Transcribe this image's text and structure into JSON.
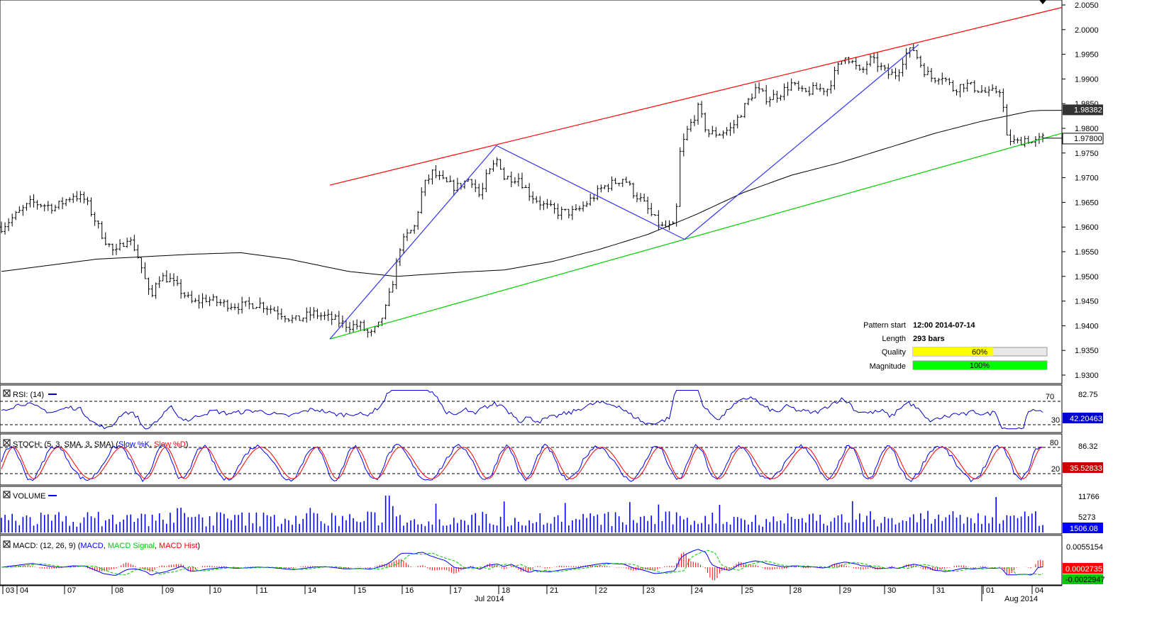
{
  "colors": {
    "channel_upper": "#ff0000",
    "channel_lower": "#00cc00",
    "zigzag": "#3333ff",
    "moving_average": "#000000",
    "rsi": "#0000cc",
    "stoch_k": "#0000ff",
    "stoch_d": "#ff0000",
    "volume": "#0000ff",
    "macd": "#0000ff",
    "macd_signal": "#00cc00",
    "macd_hist": "#ff0000",
    "quality_fill": "#ffff00",
    "magnitude_fill": "#00ff00"
  },
  "price_axis": {
    "ticks": [
      "2.0050",
      "2.0000",
      "1.9950",
      "1.9900",
      "1.9850",
      "1.9800",
      "1.9750",
      "1.9700",
      "1.9650",
      "1.9600",
      "1.9550",
      "1.9500",
      "1.9450",
      "1.9400",
      "1.9350",
      "1.9300"
    ],
    "current_label": "1.97800",
    "ma_label": "1.98382"
  },
  "pattern_info": {
    "start_label": "Pattern start",
    "start_value": "12:00 2014-07-14",
    "length_label": "Length",
    "length_value": "293 bars",
    "quality_label": "Quality",
    "quality_value": "60%",
    "quality_fraction": 0.6,
    "magnitude_label": "Magnitude",
    "magnitude_value": "100%",
    "magnitude_fraction": 1.0
  },
  "rsi": {
    "title": "RSI: (14)",
    "levels": [
      "70",
      "30"
    ],
    "max_label": "82.75",
    "value_label": "42.20463"
  },
  "stoch": {
    "title_prefix": "STOCH: (5, 3, SMA, 3, SMA) (",
    "k_label": "Slow %K",
    "sep": ", ",
    "d_label": "Slow %D",
    "title_suffix": ")",
    "levels": [
      "80",
      "20"
    ],
    "max_label": "86.32",
    "value_label": "35.52833"
  },
  "volume": {
    "title": "VOLUME",
    "ticks": [
      "11766",
      "5273"
    ],
    "value_label": "1506.08"
  },
  "macd": {
    "title_prefix": "MACD: (12, 26, 9) (",
    "macd_label": "MACD",
    "sep": ", ",
    "signal_label": "MACD Signal",
    "hist_label": "MACD Hist",
    "title_suffix": ")",
    "top_label": "0.0055154",
    "value_label": "0.0002735",
    "signal_value_label": "-0.0022947"
  },
  "x_axis": {
    "days": [
      "03",
      "04",
      "07",
      "08",
      "09",
      "10",
      "11",
      "14",
      "15",
      "16",
      "17",
      "18",
      "21",
      "22",
      "23",
      "24",
      "25",
      "28",
      "29",
      "30",
      "31",
      "01",
      "04"
    ],
    "months": [
      "Jul 2014",
      "Aug 2014"
    ]
  },
  "chart_data": {
    "type": "ohlc",
    "instrument_pattern": "Channel Up",
    "y_range": [
      1.928,
      2.006
    ],
    "channel_upper": [
      [
        "2014-07-14",
        1.9685
      ],
      [
        "2014-08-04",
        2.0045
      ]
    ],
    "channel_lower": [
      [
        "2014-07-14",
        1.9373
      ],
      [
        "2014-08-04",
        1.979
      ]
    ],
    "zigzag_points": [
      [
        "2014-07-14 12:00",
        1.9373
      ],
      [
        "2014-07-17",
        1.9765
      ],
      [
        "2014-07-23",
        1.9575
      ],
      [
        "2014-07-30",
        1.997
      ],
      [
        "2014-07-24",
        1.9575
      ]
    ],
    "close_path": [
      [
        0,
        1.96
      ],
      [
        15,
        1.963
      ],
      [
        25,
        1.965
      ],
      [
        45,
        1.964
      ],
      [
        60,
        1.9665
      ],
      [
        70,
        1.9655
      ],
      [
        85,
        1.958
      ],
      [
        95,
        1.9545
      ],
      [
        105,
        1.958
      ],
      [
        112,
        1.9555
      ],
      [
        118,
        1.951
      ],
      [
        125,
        1.945
      ],
      [
        130,
        1.95
      ],
      [
        140,
        1.9495
      ],
      [
        150,
        1.947
      ],
      [
        160,
        1.9445
      ],
      [
        170,
        1.9455
      ],
      [
        185,
        1.9445
      ],
      [
        200,
        1.944
      ],
      [
        215,
        1.9445
      ],
      [
        230,
        1.943
      ],
      [
        245,
        1.941
      ],
      [
        260,
        1.9425
      ],
      [
        275,
        1.9415
      ],
      [
        290,
        1.94
      ],
      [
        300,
        1.94
      ],
      [
        308,
        1.938
      ],
      [
        315,
        1.94
      ],
      [
        322,
        1.944
      ],
      [
        328,
        1.95
      ],
      [
        333,
        1.956
      ],
      [
        338,
        1.958
      ],
      [
        345,
        1.96
      ],
      [
        352,
        1.968
      ],
      [
        360,
        1.971
      ],
      [
        370,
        1.969
      ],
      [
        380,
        1.968
      ],
      [
        392,
        1.97
      ],
      [
        400,
        1.966
      ],
      [
        405,
        1.97
      ],
      [
        415,
        1.974
      ],
      [
        420,
        1.97
      ],
      [
        432,
        1.97
      ],
      [
        440,
        1.967
      ],
      [
        452,
        1.9645
      ],
      [
        465,
        1.963
      ],
      [
        480,
        1.963
      ],
      [
        492,
        1.9655
      ],
      [
        502,
        1.968
      ],
      [
        512,
        1.969
      ],
      [
        520,
        1.97
      ],
      [
        528,
        1.967
      ],
      [
        536,
        1.965
      ],
      [
        544,
        1.962
      ],
      [
        552,
        1.96
      ],
      [
        558,
        1.96
      ],
      [
        563,
        1.96
      ],
      [
        567,
        1.975
      ],
      [
        572,
        1.979
      ],
      [
        582,
        1.984
      ],
      [
        590,
        1.979
      ],
      [
        600,
        1.979
      ],
      [
        610,
        1.98
      ],
      [
        620,
        1.984
      ],
      [
        630,
        1.988
      ],
      [
        640,
        1.986
      ],
      [
        650,
        1.987
      ],
      [
        660,
        1.989
      ],
      [
        670,
        1.987
      ],
      [
        680,
        1.988
      ],
      [
        690,
        1.988
      ],
      [
        698,
        1.992
      ],
      [
        705,
        1.995
      ],
      [
        712,
        1.993
      ],
      [
        718,
        1.991
      ],
      [
        725,
        1.994
      ],
      [
        732,
        1.993
      ],
      [
        740,
        1.991
      ],
      [
        748,
        1.991
      ],
      [
        755,
        1.995
      ],
      [
        762,
        1.996
      ],
      [
        770,
        1.992
      ],
      [
        778,
        1.99
      ],
      [
        785,
        1.991
      ],
      [
        795,
        1.988
      ],
      [
        805,
        1.989
      ],
      [
        815,
        1.988
      ],
      [
        825,
        1.987
      ],
      [
        835,
        1.988
      ],
      [
        840,
        1.978
      ],
      [
        848,
        1.977
      ],
      [
        856,
        1.978
      ],
      [
        862,
        1.977
      ],
      [
        870,
        1.978
      ]
    ],
    "moving_average_path": [
      [
        0,
        1.951
      ],
      [
        80,
        1.9535
      ],
      [
        160,
        1.9545
      ],
      [
        200,
        1.9548
      ],
      [
        240,
        1.9535
      ],
      [
        290,
        1.951
      ],
      [
        330,
        1.95
      ],
      [
        380,
        1.9508
      ],
      [
        420,
        1.9513
      ],
      [
        460,
        1.953
      ],
      [
        500,
        1.9555
      ],
      [
        540,
        1.9585
      ],
      [
        580,
        1.9625
      ],
      [
        620,
        1.967
      ],
      [
        660,
        1.9705
      ],
      [
        700,
        1.973
      ],
      [
        740,
        1.976
      ],
      [
        780,
        1.979
      ],
      [
        820,
        1.9815
      ],
      [
        860,
        1.9835
      ],
      [
        880,
        1.9838
      ]
    ],
    "last_close": 1.978,
    "moving_average_last": 1.98382
  }
}
